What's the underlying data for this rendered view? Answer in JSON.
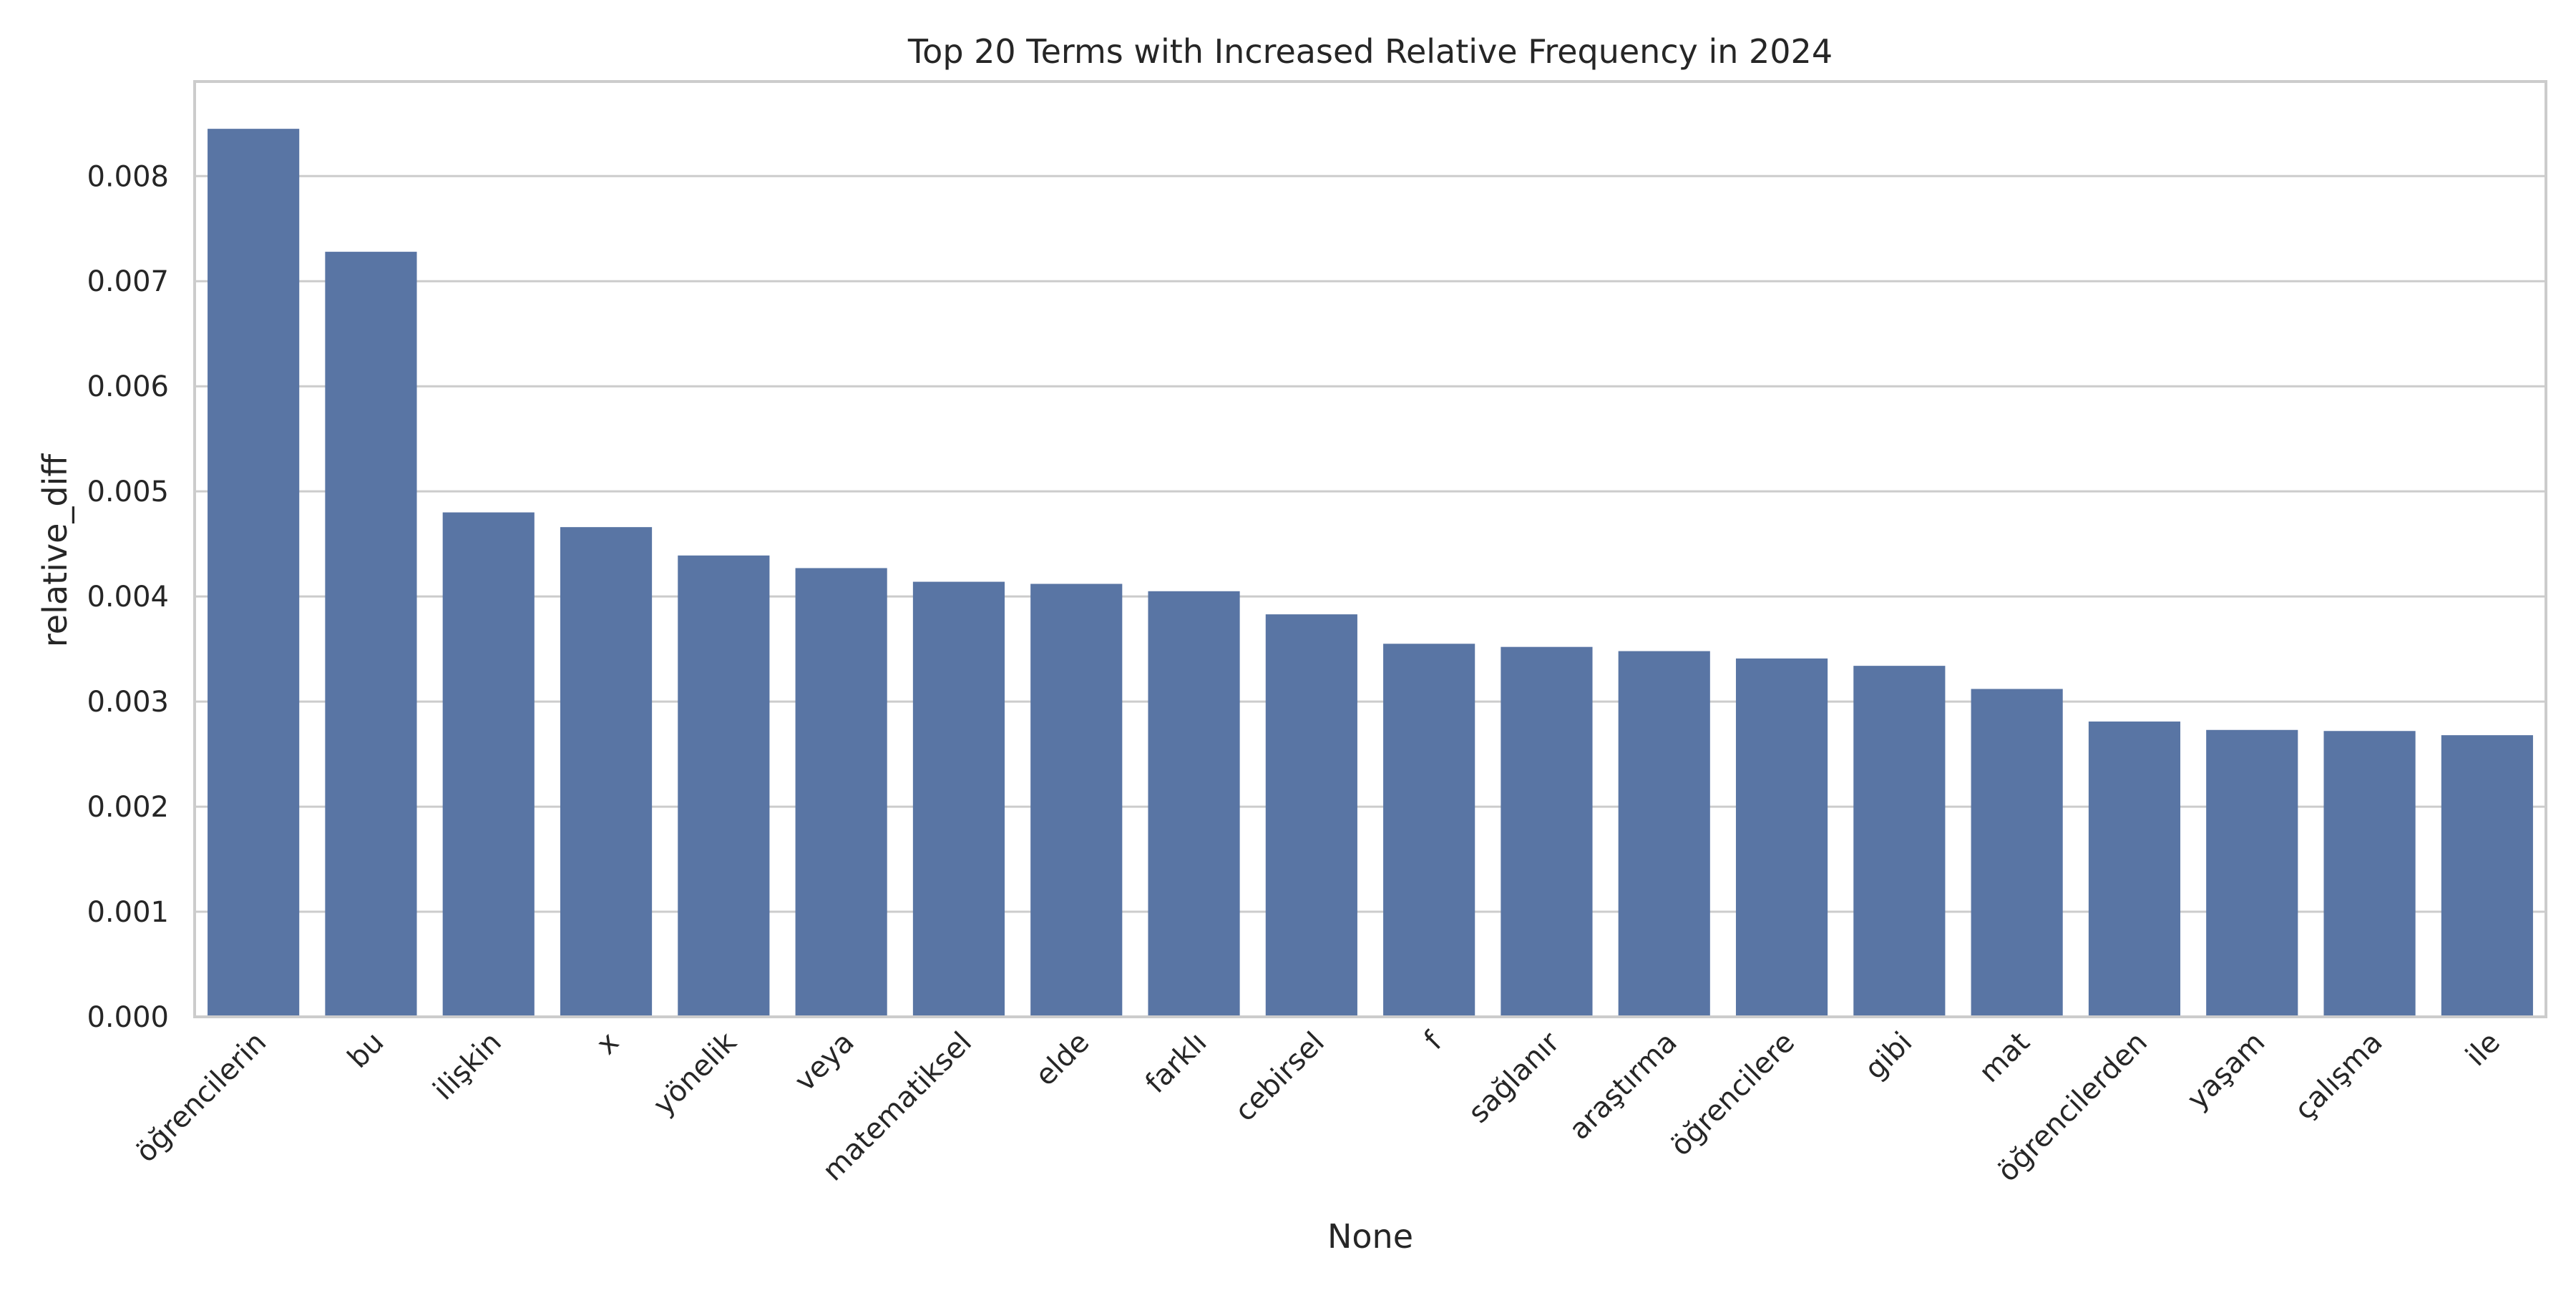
{
  "chart_data": {
    "type": "bar",
    "title": "Top 20 Terms with Increased Relative Frequency in 2024",
    "xlabel": "None",
    "ylabel": "relative_diff",
    "ylim": [
      0,
      0.0089
    ],
    "yticks": [
      "0.000",
      "0.001",
      "0.002",
      "0.003",
      "0.004",
      "0.005",
      "0.006",
      "0.007",
      "0.008"
    ],
    "grid": "horizontal",
    "categories": [
      "öğrencilerin",
      "bu",
      "ilişkin",
      "x",
      "yönelik",
      "veya",
      "matematiksel",
      "elde",
      "farklı",
      "cebirsel",
      "f",
      "sağlanır",
      "araştırma",
      "öğrencilere",
      "gibi",
      "mat",
      "öğrencilerden",
      "yaşam",
      "çalışma",
      "ile"
    ],
    "values": [
      0.00845,
      0.00728,
      0.0048,
      0.00466,
      0.00439,
      0.00427,
      0.00414,
      0.00412,
      0.00405,
      0.00383,
      0.00355,
      0.00352,
      0.00348,
      0.00341,
      0.00334,
      0.00312,
      0.00281,
      0.00273,
      0.00272,
      0.00268
    ],
    "colors": {
      "bar": "#5975a4",
      "grid": "#cccccc",
      "frame": "#cccccc",
      "text": "#262626"
    }
  }
}
